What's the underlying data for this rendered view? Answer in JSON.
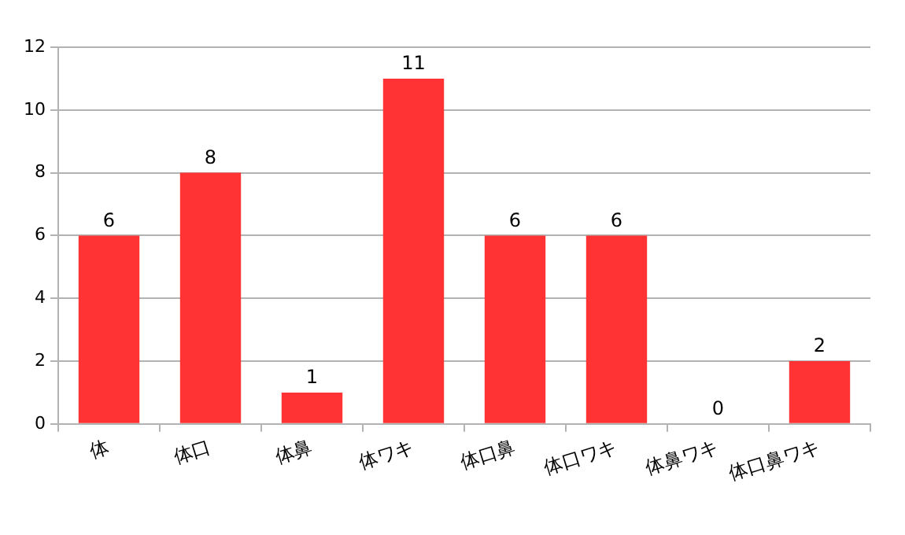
{
  "chart_data": {
    "type": "bar",
    "categories": [
      "体",
      "体口",
      "体鼻",
      "体ワキ",
      "体口鼻",
      "体口ワキ",
      "体鼻ワキ",
      "体口鼻ワキ"
    ],
    "values": [
      6,
      8,
      1,
      11,
      6,
      6,
      0,
      2
    ],
    "color": "#ff3333",
    "ylim": [
      0,
      12
    ],
    "yticks": [
      0,
      2,
      4,
      6,
      8,
      10,
      12
    ],
    "grid": "y",
    "data_labels": true,
    "legend": false
  }
}
